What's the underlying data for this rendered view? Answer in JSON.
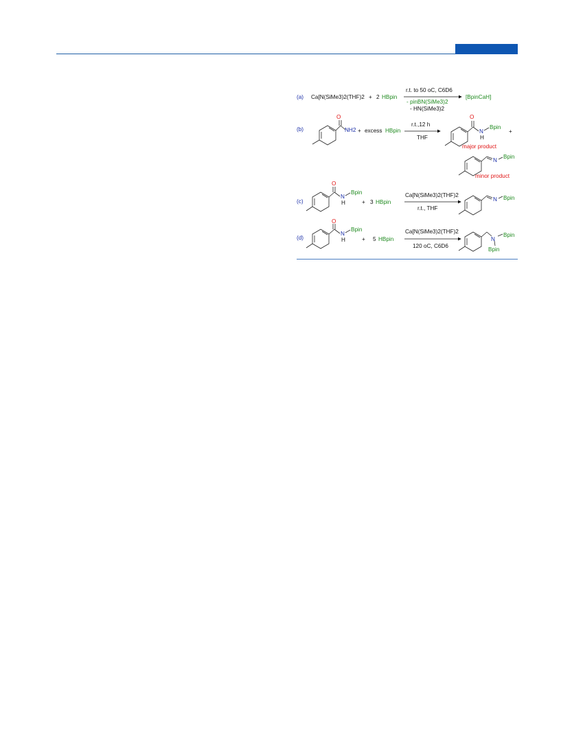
{
  "scheme": {
    "a": {
      "tag": "(a)",
      "reagent1": "Ca[N(SiMe3)2(THF)2",
      "plus": "+",
      "coef": "2",
      "hbpin": "HBpin",
      "cond_top": "r.t. to 50 oC, C6D6",
      "cond_bot1": "- pinBN(SiMe3)2",
      "cond_bot2": "- HN(SiMe3)2",
      "product": "[BpinCaH]"
    },
    "b": {
      "tag": "(b)",
      "nh2": "NH2",
      "o": "O",
      "plus": "+",
      "excess": "excess",
      "hbpin": "HBpin",
      "cond_top": "r.t.,12 h",
      "cond_bot": "THF",
      "prod_o": "O",
      "prod_n": "N",
      "prod_h": "H",
      "prod_bpin": "Bpin",
      "major": "major product",
      "plus2": "+",
      "minor_n": "N",
      "minor_bpin": "Bpin",
      "minor": "minor product"
    },
    "c": {
      "tag": "(c)",
      "o": "O",
      "n": "N",
      "h": "H",
      "bpin": "Bpin",
      "plus": "+",
      "coef": "3",
      "hbpin": "HBpin",
      "cond_top": "Ca[N(SiMe3)2(THF)2",
      "cond_bot": "r.t., THF",
      "prod_n": "N",
      "prod_bpin": "Bpin"
    },
    "d": {
      "tag": "(d)",
      "o": "O",
      "n": "N",
      "h": "H",
      "bpin": "Bpin",
      "plus": "+",
      "coef": "5",
      "hbpin": "HBpin",
      "cond_top": "Ca[N(SiMe3)2(THF)2",
      "cond_bot": "120 oC, C6D6",
      "prod_n": "N",
      "prod_bpin1": "Bpin",
      "prod_bpin2": "Bpin"
    }
  },
  "colors": {
    "accent": "#0e56b2",
    "reagent": "#1f8a1f",
    "highlight": "#e01414",
    "label": "#1a2ea8"
  }
}
